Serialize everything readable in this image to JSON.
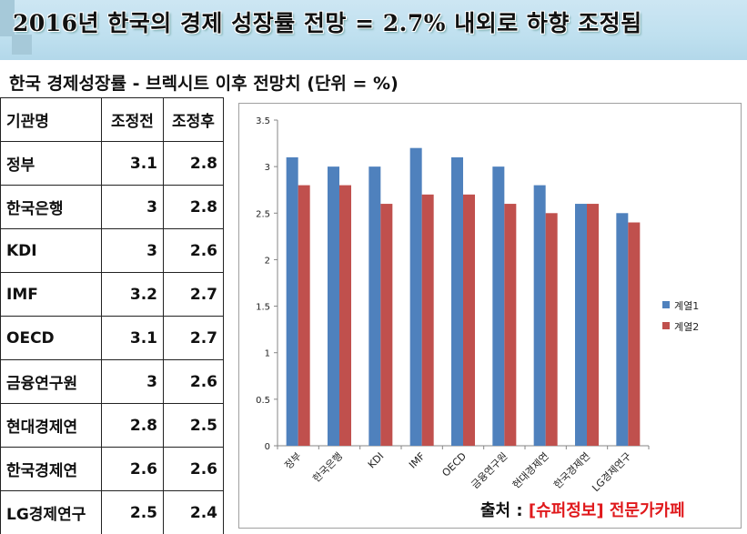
{
  "headline": "2016년 한국의 경제 성장률 전망 = 2.7% 내외로 하향 조정됨",
  "subtitle": "한국 경제성장률 - 브렉시트 이후 전망치 (단위 = %)",
  "table": {
    "headers": [
      "기관명",
      "조정전",
      "조정후"
    ],
    "rows": [
      [
        "정부",
        "3.1",
        "2.8"
      ],
      [
        "한국은행",
        "3",
        "2.8"
      ],
      [
        "KDI",
        "3",
        "2.6"
      ],
      [
        "IMF",
        "3.2",
        "2.7"
      ],
      [
        "OECD",
        "3.1",
        "2.7"
      ],
      [
        "금융연구원",
        "3",
        "2.6"
      ],
      [
        "현대경제연",
        "2.8",
        "2.5"
      ],
      [
        "한국경제연",
        "2.6",
        "2.6"
      ],
      [
        "LG경제연구",
        "2.5",
        "2.4"
      ]
    ]
  },
  "source": {
    "label": "출처 :",
    "value": "[슈퍼정보] 전문가카페"
  },
  "chart_data": {
    "type": "bar",
    "categories": [
      "정부",
      "한국은행",
      "KDI",
      "IMF",
      "OECD",
      "금융연구원",
      "현대경제연",
      "한국경제연",
      "LG경제연구"
    ],
    "series": [
      {
        "name": "계열1",
        "values": [
          3.1,
          3.0,
          3.0,
          3.2,
          3.1,
          3.0,
          2.8,
          2.6,
          2.5
        ],
        "color": "#4f81bd"
      },
      {
        "name": "계열2",
        "values": [
          2.8,
          2.8,
          2.6,
          2.7,
          2.7,
          2.6,
          2.5,
          2.6,
          2.4
        ],
        "color": "#c0504d"
      }
    ],
    "ylim": [
      0,
      3.5
    ],
    "yticks": [
      "0",
      "0.5",
      "1",
      "1.5",
      "2",
      "2.5",
      "3",
      "3.5"
    ],
    "grid": false,
    "legend": "right"
  }
}
